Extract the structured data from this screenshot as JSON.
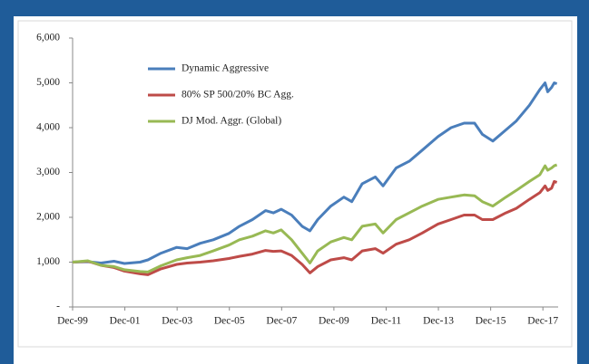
{
  "chart_data": {
    "type": "line",
    "x": [
      1999.917,
      2000.5,
      2001.0,
      2001.5,
      2001.9,
      2002.5,
      2002.8,
      2003.3,
      2003.9,
      2004.3,
      2004.8,
      2005.3,
      2005.9,
      2006.3,
      2006.8,
      2007.3,
      2007.6,
      2007.9,
      2008.3,
      2008.7,
      2009.0,
      2009.3,
      2009.8,
      2010.3,
      2010.6,
      2011.0,
      2011.5,
      2011.8,
      2012.3,
      2012.8,
      2013.3,
      2013.9,
      2014.4,
      2014.9,
      2015.3,
      2015.6,
      2016.0,
      2016.5,
      2016.9,
      2017.4,
      2017.8,
      2018.0,
      2018.1,
      2018.25,
      2018.35,
      2018.45
    ],
    "series": [
      {
        "name": "Dynamic Aggressive",
        "color": "#4a7ebb",
        "values": [
          1000,
          1010,
          980,
          1020,
          970,
          1000,
          1050,
          1200,
          1330,
          1300,
          1420,
          1500,
          1640,
          1800,
          1950,
          2150,
          2100,
          2180,
          2050,
          1800,
          1700,
          1950,
          2250,
          2450,
          2350,
          2750,
          2900,
          2700,
          3100,
          3250,
          3500,
          3800,
          4000,
          4100,
          4100,
          3850,
          3700,
          3950,
          4150,
          4500,
          4850,
          5000,
          4800,
          4900,
          5000,
          4980
        ]
      },
      {
        "name": "80% SP 500/20% BC Agg.",
        "color": "#be4b48",
        "values": [
          1000,
          1020,
          930,
          880,
          800,
          740,
          720,
          850,
          950,
          980,
          1000,
          1030,
          1080,
          1130,
          1180,
          1260,
          1240,
          1250,
          1150,
          950,
          760,
          900,
          1050,
          1100,
          1050,
          1250,
          1300,
          1200,
          1400,
          1500,
          1650,
          1850,
          1950,
          2050,
          2050,
          1950,
          1950,
          2100,
          2200,
          2400,
          2550,
          2700,
          2600,
          2650,
          2800,
          2780
        ]
      },
      {
        "name": "DJ Mod. Aggr. (Global)",
        "color": "#98b954",
        "values": [
          1000,
          1030,
          930,
          900,
          830,
          790,
          780,
          920,
          1050,
          1100,
          1150,
          1250,
          1380,
          1500,
          1580,
          1700,
          1650,
          1720,
          1500,
          1200,
          980,
          1250,
          1450,
          1550,
          1500,
          1800,
          1850,
          1650,
          1950,
          2100,
          2250,
          2400,
          2450,
          2500,
          2480,
          2350,
          2250,
          2450,
          2600,
          2800,
          2950,
          3150,
          3050,
          3100,
          3150,
          3170
        ]
      }
    ],
    "xlim": [
      1999.917,
      2018.5
    ],
    "xticks": [
      {
        "value": 1999.917,
        "label": "Dec-99"
      },
      {
        "value": 2001.917,
        "label": "Dec-01"
      },
      {
        "value": 2003.917,
        "label": "Dec-03"
      },
      {
        "value": 2005.917,
        "label": "Dec-05"
      },
      {
        "value": 2007.917,
        "label": "Dec-07"
      },
      {
        "value": 2009.917,
        "label": "Dec-09"
      },
      {
        "value": 2011.917,
        "label": "Dec-11"
      },
      {
        "value": 2013.917,
        "label": "Dec-13"
      },
      {
        "value": 2015.917,
        "label": "Dec-15"
      },
      {
        "value": 2017.917,
        "label": "Dec-17"
      }
    ],
    "ylim": [
      0,
      6000
    ],
    "yticks": [
      {
        "value": 0,
        "label": "-"
      },
      {
        "value": 1000,
        "label": "1,000"
      },
      {
        "value": 2000,
        "label": "2,000"
      },
      {
        "value": 3000,
        "label": "3,000"
      },
      {
        "value": 4000,
        "label": "4,000"
      },
      {
        "value": 5000,
        "label": "5,000"
      },
      {
        "value": 6000,
        "label": "6,000"
      }
    ],
    "grid": false,
    "legend": "upper-left"
  }
}
